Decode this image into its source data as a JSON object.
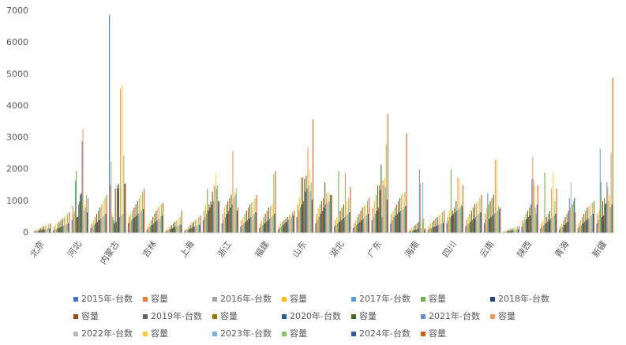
{
  "chart_data": {
    "type": "bar",
    "categories": [
      "北京",
      null,
      "河北",
      null,
      "内蒙古",
      null,
      "吉林",
      null,
      "上海",
      null,
      "浙江",
      null,
      "福建",
      null,
      "山东",
      null,
      "湖北",
      null,
      "广东",
      null,
      "海南",
      null,
      "四川",
      null,
      "云南",
      null,
      "陕西",
      null,
      "青海",
      null,
      "新疆"
    ],
    "ylim": [
      0,
      7000
    ],
    "yticks": [
      0,
      1000,
      2000,
      3000,
      4000,
      5000,
      6000,
      7000
    ],
    "grid": false,
    "series": [
      {
        "name": "2015年-台数",
        "color": "#4472c4",
        "values": [
          50,
          80,
          400,
          150,
          6880,
          300,
          100,
          50,
          60,
          400,
          300,
          200,
          150,
          100,
          500,
          300,
          200,
          150,
          400,
          300,
          50,
          100,
          300,
          200,
          300,
          20,
          200,
          150,
          100,
          150,
          300
        ]
      },
      {
        "name": "容量",
        "color": "#ed7d31",
        "values": [
          80,
          200,
          850,
          300,
          1500,
          500,
          200,
          100,
          100,
          700,
          600,
          400,
          300,
          200,
          900,
          600,
          400,
          300,
          800,
          600,
          100,
          200,
          500,
          400,
          600,
          50,
          400,
          300,
          200,
          300,
          600
        ]
      },
      {
        "name": "2016年-台数",
        "color": "#a5a5a5",
        "values": [
          60,
          100,
          600,
          200,
          2250,
          350,
          150,
          80,
          80,
          500,
          400,
          250,
          200,
          150,
          700,
          400,
          250,
          200,
          500,
          400,
          60,
          120,
          400,
          250,
          400,
          30,
          300,
          200,
          150,
          200,
          400
        ]
      },
      {
        "name": "容量",
        "color": "#ffc000",
        "values": [
          100,
          250,
          700,
          400,
          600,
          600,
          300,
          150,
          150,
          900,
          800,
          500,
          400,
          300,
          1100,
          800,
          500,
          400,
          1000,
          700,
          150,
          300,
          700,
          500,
          800,
          60,
          500,
          400,
          300,
          400,
          700
        ]
      },
      {
        "name": "2017年-台数",
        "color": "#5b9bd5",
        "values": [
          70,
          120,
          1650,
          250,
          500,
          400,
          200,
          100,
          100,
          600,
          500,
          300,
          250,
          200,
          800,
          500,
          300,
          250,
          600,
          500,
          80,
          150,
          500,
          300,
          1250,
          40,
          400,
          250,
          200,
          250,
          2650
        ]
      },
      {
        "name": "容量",
        "color": "#70ad47",
        "values": [
          120,
          300,
          1950,
          500,
          400,
          700,
          400,
          200,
          200,
          1400,
          900,
          600,
          500,
          350,
          1750,
          900,
          1950,
          500,
          1200,
          800,
          200,
          350,
          2000,
          600,
          900,
          80,
          600,
          1900,
          400,
          500,
          1600
        ]
      },
      {
        "name": "2018年-台数",
        "color": "#264478",
        "values": [
          80,
          150,
          500,
          300,
          300,
          450,
          250,
          120,
          120,
          700,
          600,
          350,
          300,
          250,
          900,
          600,
          350,
          300,
          700,
          550,
          90,
          180,
          550,
          350,
          450,
          50,
          450,
          300,
          250,
          300,
          500
        ]
      },
      {
        "name": "容量",
        "color": "#9e480e",
        "values": [
          150,
          350,
          500,
          600,
          1400,
          800,
          500,
          250,
          250,
          900,
          1000,
          700,
          600,
          400,
          1750,
          1000,
          700,
          600,
          1500,
          900,
          250,
          400,
          700,
          700,
          1000,
          100,
          700,
          500,
          500,
          600,
          1000
        ]
      },
      {
        "name": "2019年-台数",
        "color": "#636363",
        "values": [
          90,
          170,
          900,
          350,
          350,
          500,
          300,
          150,
          150,
          800,
          700,
          400,
          350,
          300,
          1000,
          700,
          400,
          350,
          800,
          600,
          100,
          200,
          600,
          400,
          500,
          60,
          500,
          350,
          300,
          350,
          550
        ]
      },
      {
        "name": "容量",
        "color": "#997300",
        "values": [
          180,
          400,
          1000,
          700,
          1500,
          900,
          600,
          300,
          300,
          1000,
          1100,
          800,
          700,
          450,
          1700,
          1100,
          800,
          700,
          1500,
          1000,
          300,
          450,
          800,
          800,
          1100,
          120,
          800,
          600,
          600,
          700,
          1100
        ]
      },
      {
        "name": "2020年-台数",
        "color": "#255e91",
        "values": [
          100,
          200,
          1200,
          400,
          1400,
          550,
          350,
          180,
          180,
          900,
          800,
          450,
          400,
          350,
          1300,
          800,
          450,
          400,
          1350,
          650,
          120,
          220,
          650,
          450,
          550,
          70,
          550,
          400,
          350,
          400,
          900
        ]
      },
      {
        "name": "容量",
        "color": "#43682b",
        "values": [
          200,
          450,
          1250,
          800,
          1550,
          1000,
          700,
          350,
          350,
          1300,
          1200,
          900,
          800,
          500,
          1800,
          1600,
          900,
          800,
          2150,
          1100,
          350,
          500,
          1000,
          900,
          1200,
          140,
          900,
          700,
          700,
          800,
          950
        ]
      },
      {
        "name": "2021年-台数",
        "color": "#698ed0",
        "values": [
          110,
          220,
          2900,
          450,
          500,
          600,
          400,
          200,
          200,
          1000,
          900,
          500,
          450,
          400,
          1400,
          900,
          500,
          450,
          500,
          700,
          2000,
          250,
          700,
          500,
          600,
          80,
          1700,
          450,
          1100,
          450,
          1600
        ]
      },
      {
        "name": "容量",
        "color": "#f1975a",
        "values": [
          220,
          500,
          3280,
          900,
          4550,
          1100,
          800,
          400,
          400,
          1500,
          2600,
          950,
          850,
          550,
          2700,
          1250,
          1900,
          850,
          1650,
          1200,
          1550,
          550,
          1750,
          950,
          2300,
          160,
          2400,
          1400,
          800,
          850,
          1450
        ]
      },
      {
        "name": "2022年-台数",
        "color": "#b7b7b7",
        "values": [
          120,
          250,
          700,
          500,
          550,
          650,
          450,
          220,
          220,
          1450,
          1100,
          550,
          500,
          450,
          1500,
          950,
          550,
          500,
          1500,
          750,
          150,
          270,
          750,
          550,
          650,
          90,
          1700,
          500,
          1600,
          500,
          1000
        ]
      },
      {
        "name": "容量",
        "color": "#ffcd33",
        "values": [
          250,
          550,
          900,
          1000,
          4680,
          1200,
          850,
          450,
          450,
          1850,
          1300,
          1000,
          900,
          600,
          2000,
          1300,
          1000,
          900,
          1750,
          1250,
          400,
          600,
          1700,
          1000,
          2320,
          180,
          1550,
          1900,
          900,
          900,
          1200
        ]
      },
      {
        "name": "2023年-台数",
        "color": "#7cafdd",
        "values": [
          130,
          280,
          800,
          550,
          600,
          700,
          500,
          240,
          240,
          1400,
          1200,
          600,
          550,
          500,
          1300,
          1000,
          600,
          550,
          1450,
          800,
          1600,
          300,
          800,
          600,
          700,
          100,
          800,
          550,
          900,
          550,
          800
        ]
      },
      {
        "name": "容量",
        "color": "#8cc168",
        "values": [
          280,
          600,
          1200,
          1100,
          2450,
          1300,
          900,
          500,
          500,
          1500,
          1400,
          1100,
          1850,
          650,
          1600,
          1200,
          1100,
          1000,
          2800,
          1300,
          450,
          650,
          900,
          1100,
          850,
          200,
          600,
          1000,
          1000,
          950,
          2530
        ]
      },
      {
        "name": "2024年-台数",
        "color": "#335aa1",
        "values": [
          140,
          300,
          650,
          600,
          1550,
          750,
          550,
          260,
          260,
          1000,
          700,
          650,
          600,
          550,
          1050,
          1200,
          650,
          600,
          1050,
          850,
          100,
          320,
          850,
          650,
          750,
          110,
          900,
          600,
          1100,
          600,
          900
        ]
      },
      {
        "name": "容量",
        "color": "#d26012",
        "values": [
          300,
          650,
          1100,
          1200,
          1560,
          1400,
          950,
          700,
          550,
          1000,
          800,
          1200,
          1950,
          700,
          3580,
          1200,
          1450,
          1100,
          3760,
          3140,
          150,
          700,
          1500,
          1200,
          800,
          220,
          1500,
          1400,
          650,
          1000,
          4900
        ]
      }
    ]
  }
}
